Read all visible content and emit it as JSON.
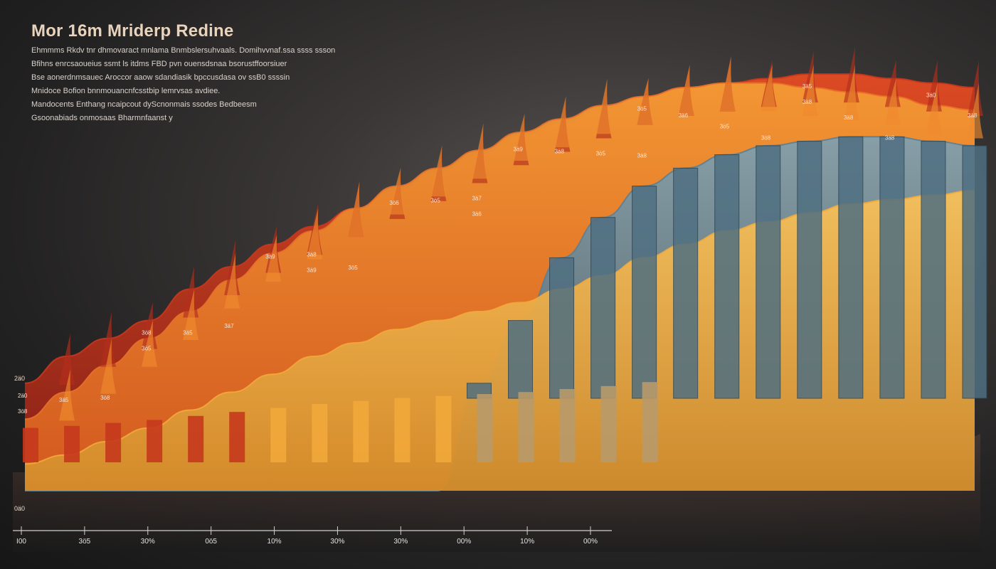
{
  "chart_data": {
    "type": "bar",
    "title": "Mor 16m Mriderp Redine",
    "subtitle_lines": [
      "Ehmmms Rkdv tnr dhmovaract mnlama Bnmbslersuhvaals. Domihvvnaf.ssa ssss ssson",
      "Bfihns enrcsaoueius ssmt ls itdms FBD pvn ouensdsnaa bsorustffoorsiuer",
      "Bse aonerdnmsauec Aroccor aaow sdandiasik bpccusdasa ov ssB0 ssssin",
      "Mnidoce Bofion bnnmouancnfcsstbip lemrvsas avdiee.",
      "Mandocents Enthang ncaipcout dyScnonmais ssodes Bedbeesm",
      "Gsoonabiads onmosaas Bharmnfaanst y"
    ],
    "x_ticks": [
      "I00",
      "3ö5",
      "30%",
      "0ö5",
      "10%",
      "30%",
      "30%",
      "00%",
      "10%",
      "00%"
    ],
    "y_tick_labels": [
      "2ä0",
      "0ä0"
    ],
    "series": [
      {
        "name": "red",
        "color": "#c8371e",
        "values": [
          24,
          30,
          34,
          38,
          45,
          50,
          55,
          59,
          63,
          67,
          71,
          75,
          79,
          82,
          85,
          88,
          90,
          91,
          92,
          93,
          93,
          92,
          91,
          90
        ]
      },
      {
        "name": "orange",
        "color": "#e8702a",
        "values": [
          16,
          22,
          28,
          34,
          40,
          47,
          53,
          58,
          63,
          68,
          72,
          76,
          80,
          83,
          86,
          88,
          90,
          91,
          91,
          90,
          89,
          88,
          86,
          85
        ]
      },
      {
        "name": "yellow",
        "color": "#f2a93b",
        "values": [
          6,
          8,
          11,
          14,
          18,
          22,
          26,
          30,
          33,
          36,
          38,
          40,
          42,
          45,
          48,
          52,
          55,
          58,
          60,
          62,
          64,
          65,
          66,
          67
        ]
      },
      {
        "name": "slate",
        "color": "#5c7f92",
        "values": [
          0,
          0,
          0,
          0,
          0,
          0,
          0,
          0,
          0,
          0,
          0,
          24,
          38,
          52,
          61,
          68,
          72,
          75,
          77,
          78,
          79,
          79,
          78,
          77
        ]
      }
    ],
    "data_labels": [
      "2ä0",
      "3ö8",
      "3ä5",
      "3ö8",
      "3ö8",
      "3ö5",
      "3ä5",
      "3ä7",
      "3ä9",
      "3ä8",
      "3ä9",
      "3ö5",
      "3ö6",
      "3ö5",
      "3ä7",
      "3ä6",
      "3ä9",
      "3ä8",
      "3ö5",
      "3ä8",
      "3ö5",
      "3ä6",
      "3ö5",
      "3ö8",
      "3ä5",
      "3ä8",
      "3ä8",
      "3ä8",
      "3ä0",
      "3ä8"
    ],
    "axis_range": [
      0,
      100
    ],
    "grid": false,
    "legend": "none"
  }
}
